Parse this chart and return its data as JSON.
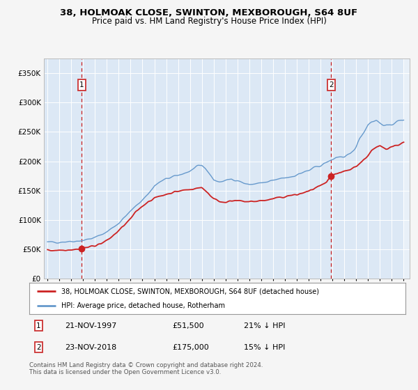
{
  "title": "38, HOLMOAK CLOSE, SWINTON, MEXBOROUGH, S64 8UF",
  "subtitle": "Price paid vs. HM Land Registry's House Price Index (HPI)",
  "bg_color": "#dce8f5",
  "fig_bg_color": "#f5f5f5",
  "ylim": [
    0,
    375000
  ],
  "yticks": [
    0,
    50000,
    100000,
    150000,
    200000,
    250000,
    300000,
    350000
  ],
  "xlim_start": 1994.7,
  "xlim_end": 2025.5,
  "xticks": [
    1995,
    1996,
    1997,
    1998,
    1999,
    2000,
    2001,
    2002,
    2003,
    2004,
    2005,
    2006,
    2007,
    2008,
    2009,
    2010,
    2011,
    2012,
    2013,
    2014,
    2015,
    2016,
    2017,
    2018,
    2019,
    2020,
    2021,
    2022,
    2023,
    2024,
    2025
  ],
  "hpi_color": "#6699cc",
  "price_color": "#cc2222",
  "sale1_date": 1997.896,
  "sale1_price": 51500,
  "sale1_label": "1",
  "sale2_date": 2018.896,
  "sale2_price": 175000,
  "sale2_label": "2",
  "legend_line1": "38, HOLMOAK CLOSE, SWINTON, MEXBOROUGH, S64 8UF (detached house)",
  "legend_line2": "HPI: Average price, detached house, Rotherham",
  "footnote1": "Contains HM Land Registry data © Crown copyright and database right 2024.",
  "footnote2": "This data is licensed under the Open Government Licence v3.0.",
  "info1_label": "1",
  "info1_date": "21-NOV-1997",
  "info1_price": "£51,500",
  "info1_hpi": "21% ↓ HPI",
  "info2_label": "2",
  "info2_date": "23-NOV-2018",
  "info2_price": "£175,000",
  "info2_hpi": "15% ↓ HPI",
  "hpi_anchors_x": [
    1995.0,
    1996.0,
    1997.0,
    1998.0,
    1999.0,
    2000.0,
    2001.0,
    2002.0,
    2003.0,
    2003.5,
    2004.0,
    2004.5,
    2005.0,
    2005.5,
    2006.0,
    2006.5,
    2007.0,
    2007.3,
    2007.7,
    2008.0,
    2008.3,
    2008.7,
    2009.0,
    2009.5,
    2010.0,
    2010.5,
    2011.0,
    2011.5,
    2012.0,
    2012.5,
    2013.0,
    2013.5,
    2014.0,
    2014.5,
    2015.0,
    2015.5,
    2016.0,
    2016.5,
    2017.0,
    2017.5,
    2018.0,
    2018.5,
    2019.0,
    2019.3,
    2019.7,
    2020.0,
    2020.5,
    2021.0,
    2021.3,
    2021.7,
    2022.0,
    2022.3,
    2022.7,
    2023.0,
    2023.3,
    2023.7,
    2024.0,
    2024.5,
    2025.0
  ],
  "hpi_anchors_y": [
    62000,
    63000,
    64000,
    65500,
    70000,
    80000,
    95000,
    115000,
    135000,
    145000,
    158000,
    165000,
    170000,
    173000,
    176000,
    180000,
    183000,
    187000,
    191000,
    193000,
    188000,
    178000,
    168000,
    165000,
    167000,
    170000,
    168000,
    163000,
    160000,
    162000,
    163000,
    164000,
    167000,
    170000,
    172000,
    174000,
    177000,
    181000,
    184000,
    189000,
    193000,
    198000,
    203000,
    207000,
    208000,
    206000,
    212000,
    225000,
    240000,
    252000,
    263000,
    268000,
    270000,
    265000,
    262000,
    260000,
    263000,
    268000,
    272000
  ],
  "price_anchors_x": [
    1995.0,
    1996.0,
    1996.5,
    1997.0,
    1997.5,
    1997.896,
    1998.2,
    1998.7,
    1999.0,
    1999.5,
    2000.0,
    2000.5,
    2001.0,
    2001.5,
    2002.0,
    2002.5,
    2003.0,
    2003.5,
    2004.0,
    2004.5,
    2005.0,
    2005.5,
    2006.0,
    2006.5,
    2007.0,
    2007.3,
    2007.7,
    2008.0,
    2008.3,
    2008.7,
    2009.0,
    2009.3,
    2009.7,
    2010.0,
    2010.5,
    2011.0,
    2011.5,
    2012.0,
    2012.5,
    2013.0,
    2013.5,
    2014.0,
    2014.5,
    2015.0,
    2015.5,
    2016.0,
    2016.5,
    2017.0,
    2017.5,
    2018.0,
    2018.5,
    2018.896,
    2019.2,
    2019.7,
    2020.0,
    2020.5,
    2021.0,
    2021.5,
    2022.0,
    2022.3,
    2022.7,
    2023.0,
    2023.5,
    2024.0,
    2024.5,
    2025.0
  ],
  "price_anchors_y": [
    48500,
    49000,
    49500,
    50000,
    50500,
    51500,
    53000,
    55000,
    57000,
    60000,
    65000,
    73000,
    82000,
    92000,
    102000,
    115000,
    124000,
    132000,
    137000,
    141000,
    144000,
    147000,
    149000,
    151000,
    152000,
    153500,
    154500,
    155000,
    151000,
    142000,
    137000,
    133000,
    131000,
    131500,
    132000,
    132500,
    132000,
    131000,
    132000,
    133000,
    134000,
    136000,
    138000,
    140000,
    142000,
    143000,
    146000,
    149000,
    154000,
    158000,
    163000,
    175000,
    178000,
    180000,
    183000,
    186000,
    192000,
    200000,
    210000,
    218000,
    223000,
    226000,
    222000,
    225000,
    228000,
    232000
  ]
}
